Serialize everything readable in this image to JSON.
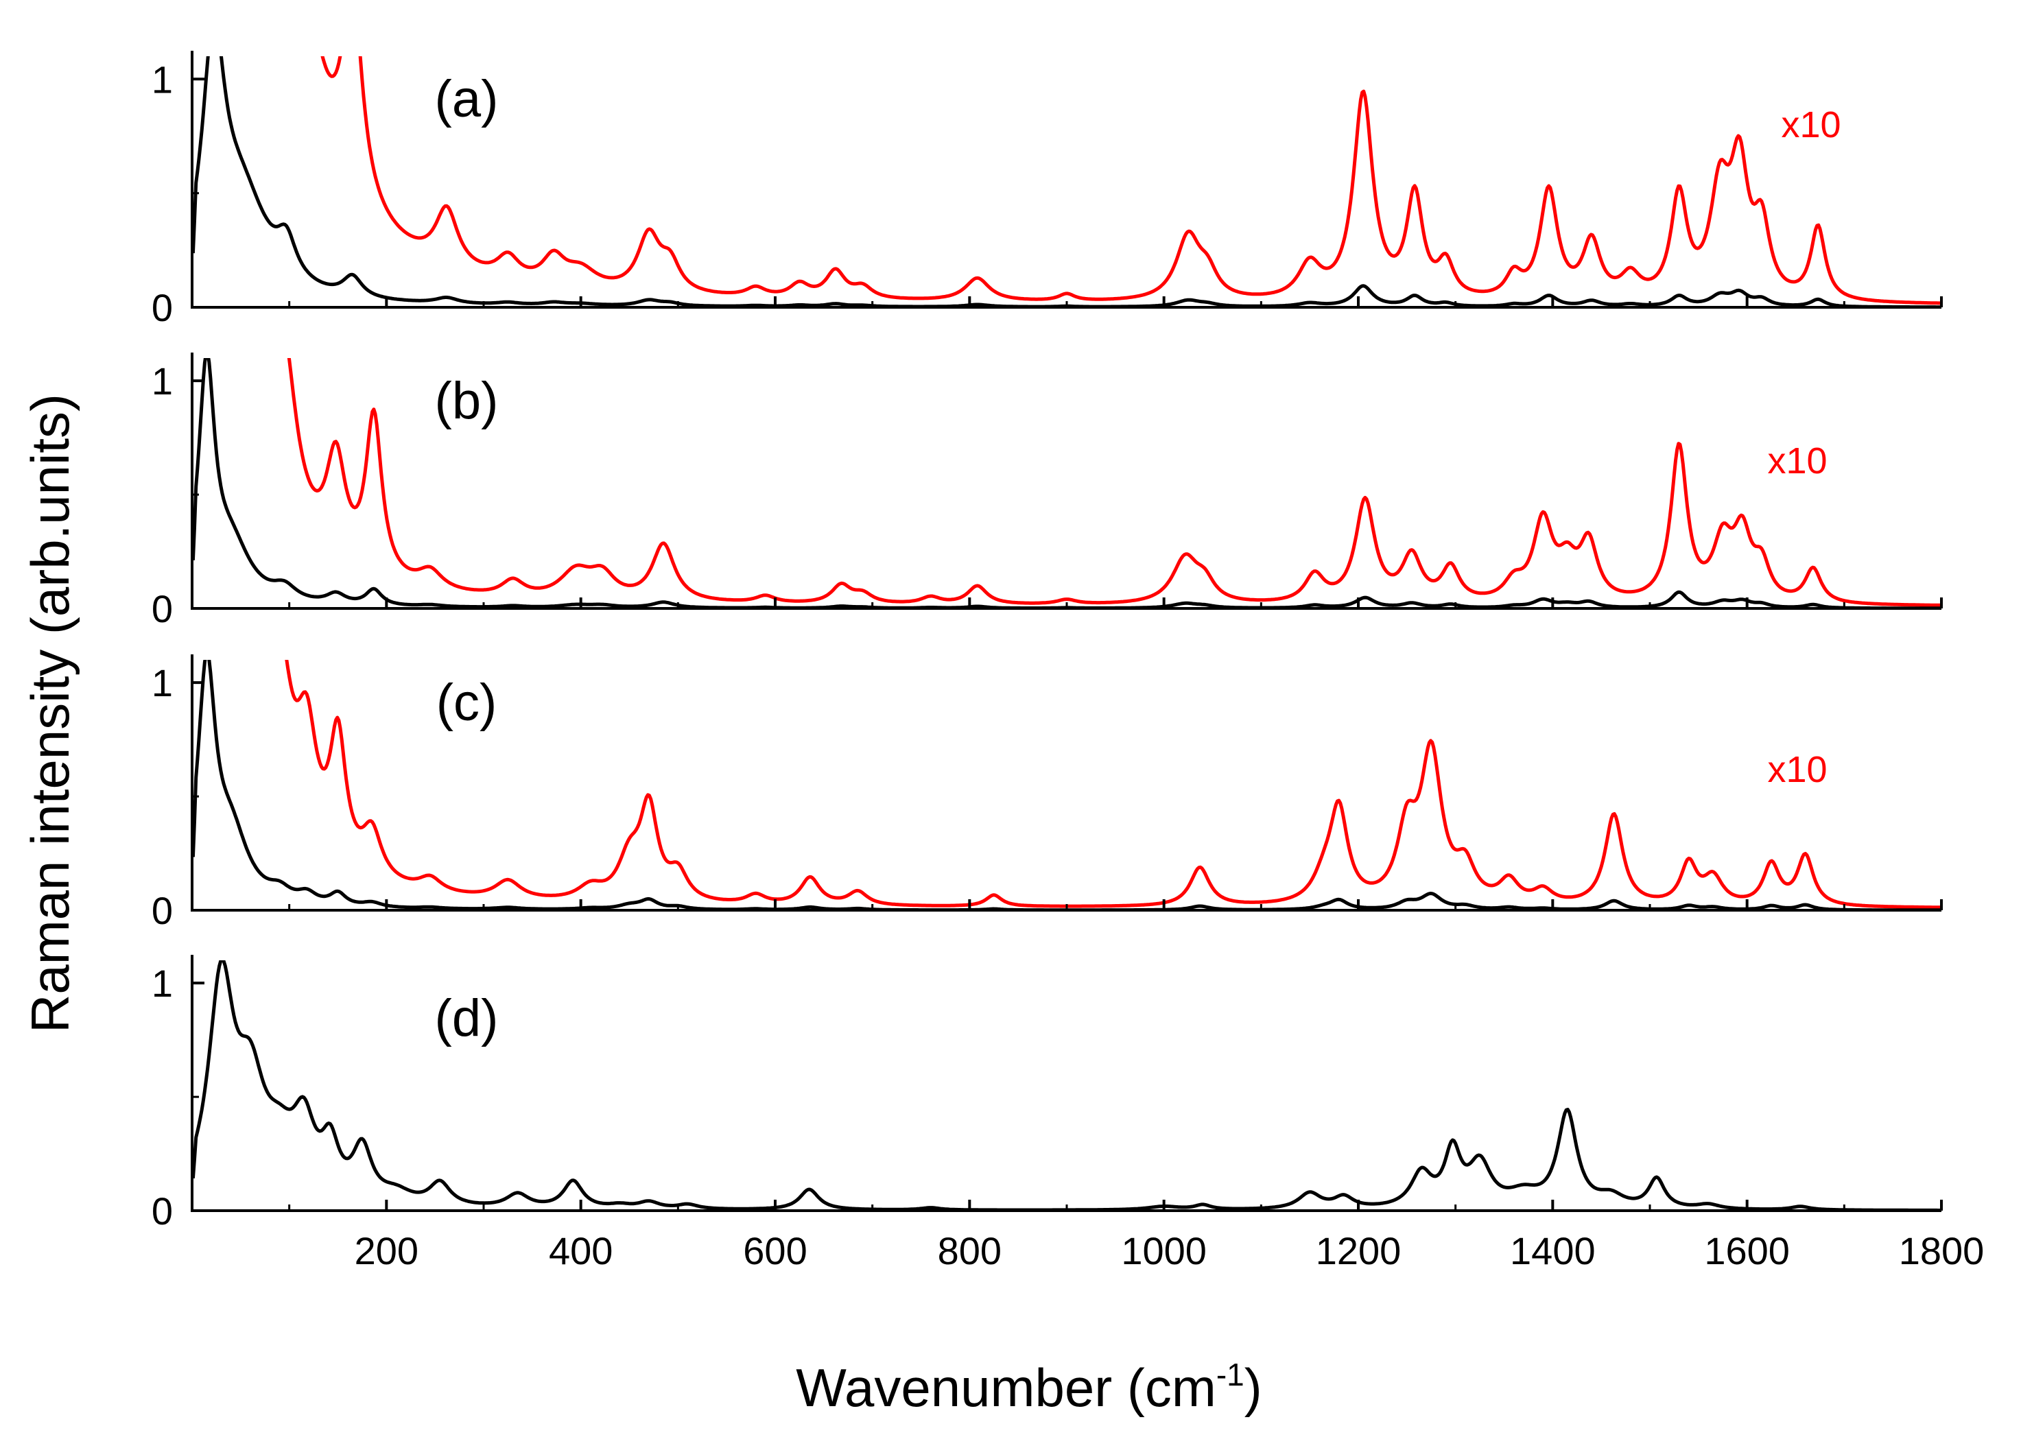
{
  "chart_data": {
    "type": "line",
    "xlabel": "Wavenumber (cm",
    "xlabel_superscript": "-1",
    "xlabel_close": ")",
    "ylabel": "Raman intensity (arb.units)",
    "xlim": [
      0,
      1800
    ],
    "x_ticks": [
      200,
      400,
      600,
      800,
      1000,
      1200,
      1400,
      1600,
      1800
    ],
    "colors": {
      "main": "#000000",
      "scaled": "#ff0000"
    },
    "panels": [
      {
        "label": "(a)",
        "ylim": [
          0,
          1.1
        ],
        "y_ticks": [
          0,
          1
        ],
        "scaled_label": "x10",
        "base": [
          [
            2,
            0.25
          ],
          [
            10,
            0.8
          ]
        ],
        "peaks": [
          [
            22,
            1.0,
            14
          ],
          [
            50,
            0.45,
            35
          ],
          [
            97,
            0.16,
            12
          ],
          [
            165,
            0.09,
            12
          ],
          [
            262,
            0.025,
            14
          ],
          [
            325,
            0.01,
            14
          ],
          [
            372,
            0.012,
            14
          ],
          [
            400,
            0.008,
            20
          ],
          [
            470,
            0.025,
            14
          ],
          [
            492,
            0.012,
            12
          ],
          [
            580,
            0.004,
            12
          ],
          [
            625,
            0.006,
            12
          ],
          [
            662,
            0.012,
            12
          ],
          [
            690,
            0.005,
            12
          ],
          [
            808,
            0.01,
            15
          ],
          [
            900,
            0.003,
            10
          ],
          [
            1025,
            0.028,
            15
          ],
          [
            1045,
            0.01,
            12
          ],
          [
            1150,
            0.015,
            14
          ],
          [
            1205,
            0.09,
            12
          ],
          [
            1258,
            0.045,
            10
          ],
          [
            1290,
            0.015,
            10
          ],
          [
            1360,
            0.01,
            10
          ],
          [
            1396,
            0.048,
            11
          ],
          [
            1440,
            0.025,
            11
          ],
          [
            1480,
            0.01,
            12
          ],
          [
            1530,
            0.045,
            10
          ],
          [
            1572,
            0.045,
            12
          ],
          [
            1592,
            0.055,
            11
          ],
          [
            1615,
            0.03,
            10
          ],
          [
            1673,
            0.032,
            9
          ]
        ],
        "scaled_base": 1.0
      },
      {
        "label": "(b)",
        "ylim": [
          0,
          1.1
        ],
        "y_ticks": [
          0,
          1
        ],
        "scaled_label": "x10",
        "base": [
          [
            2,
            0.35
          ],
          [
            10,
            0.85
          ]
        ],
        "peaks": [
          [
            15,
            1.0,
            10
          ],
          [
            40,
            0.25,
            25
          ],
          [
            95,
            0.06,
            15
          ],
          [
            148,
            0.045,
            12
          ],
          [
            187,
            0.07,
            10
          ],
          [
            245,
            0.008,
            15
          ],
          [
            330,
            0.007,
            14
          ],
          [
            395,
            0.012,
            20
          ],
          [
            422,
            0.01,
            16
          ],
          [
            485,
            0.025,
            14
          ],
          [
            590,
            0.003,
            12
          ],
          [
            668,
            0.008,
            12
          ],
          [
            690,
            0.004,
            12
          ],
          [
            760,
            0.003,
            12
          ],
          [
            808,
            0.008,
            12
          ],
          [
            900,
            0.002,
            12
          ],
          [
            1022,
            0.02,
            16
          ],
          [
            1042,
            0.008,
            12
          ],
          [
            1155,
            0.012,
            12
          ],
          [
            1207,
            0.045,
            12
          ],
          [
            1255,
            0.02,
            12
          ],
          [
            1295,
            0.015,
            11
          ],
          [
            1360,
            0.008,
            12
          ],
          [
            1390,
            0.035,
            12
          ],
          [
            1415,
            0.015,
            12
          ],
          [
            1437,
            0.025,
            11
          ],
          [
            1530,
            0.068,
            10
          ],
          [
            1575,
            0.025,
            12
          ],
          [
            1595,
            0.028,
            11
          ],
          [
            1615,
            0.015,
            10
          ],
          [
            1668,
            0.015,
            10
          ]
        ],
        "scaled_base": 0.9
      },
      {
        "label": "(c)",
        "ylim": [
          0,
          1.1
        ],
        "y_ticks": [
          0,
          1
        ],
        "scaled_label": "x10",
        "base": [
          [
            2,
            0.45
          ],
          [
            10,
            0.85
          ]
        ],
        "peaks": [
          [
            15,
            1.0,
            11
          ],
          [
            40,
            0.3,
            22
          ],
          [
            90,
            0.05,
            14
          ],
          [
            118,
            0.045,
            12
          ],
          [
            150,
            0.055,
            10
          ],
          [
            185,
            0.02,
            12
          ],
          [
            245,
            0.006,
            14
          ],
          [
            325,
            0.008,
            16
          ],
          [
            410,
            0.006,
            16
          ],
          [
            450,
            0.018,
            14
          ],
          [
            470,
            0.04,
            11
          ],
          [
            500,
            0.012,
            12
          ],
          [
            580,
            0.004,
            12
          ],
          [
            636,
            0.012,
            12
          ],
          [
            685,
            0.006,
            12
          ],
          [
            825,
            0.005,
            10
          ],
          [
            1037,
            0.017,
            12
          ],
          [
            1165,
            0.01,
            14
          ],
          [
            1180,
            0.04,
            11
          ],
          [
            1250,
            0.03,
            12
          ],
          [
            1275,
            0.065,
            13
          ],
          [
            1310,
            0.015,
            12
          ],
          [
            1355,
            0.01,
            12
          ],
          [
            1390,
            0.006,
            12
          ],
          [
            1463,
            0.04,
            11
          ],
          [
            1540,
            0.018,
            10
          ],
          [
            1565,
            0.012,
            12
          ],
          [
            1625,
            0.018,
            10
          ],
          [
            1660,
            0.022,
            10
          ]
        ],
        "scaled_base": 1.0
      },
      {
        "label": "(d)",
        "ylim": [
          0,
          1.1
        ],
        "y_ticks": [
          0,
          1
        ],
        "base": [
          [
            2,
            0.12
          ],
          [
            10,
            0.4
          ]
        ],
        "peaks": [
          [
            30,
            0.95,
            16
          ],
          [
            60,
            0.45,
            18
          ],
          [
            90,
            0.2,
            20
          ],
          [
            115,
            0.3,
            14
          ],
          [
            142,
            0.22,
            11
          ],
          [
            175,
            0.23,
            12
          ],
          [
            210,
            0.05,
            20
          ],
          [
            255,
            0.1,
            13
          ],
          [
            335,
            0.06,
            14
          ],
          [
            392,
            0.12,
            12
          ],
          [
            440,
            0.015,
            14
          ],
          [
            470,
            0.03,
            13
          ],
          [
            510,
            0.02,
            13
          ],
          [
            635,
            0.09,
            12
          ],
          [
            760,
            0.01,
            12
          ],
          [
            1000,
            0.015,
            20
          ],
          [
            1040,
            0.02,
            10
          ],
          [
            1150,
            0.07,
            14
          ],
          [
            1185,
            0.05,
            12
          ],
          [
            1265,
            0.15,
            13
          ],
          [
            1297,
            0.24,
            10
          ],
          [
            1325,
            0.19,
            14
          ],
          [
            1370,
            0.06,
            20
          ],
          [
            1415,
            0.42,
            12
          ],
          [
            1460,
            0.05,
            16
          ],
          [
            1507,
            0.13,
            10
          ],
          [
            1560,
            0.02,
            14
          ],
          [
            1655,
            0.015,
            12
          ]
        ]
      }
    ]
  }
}
